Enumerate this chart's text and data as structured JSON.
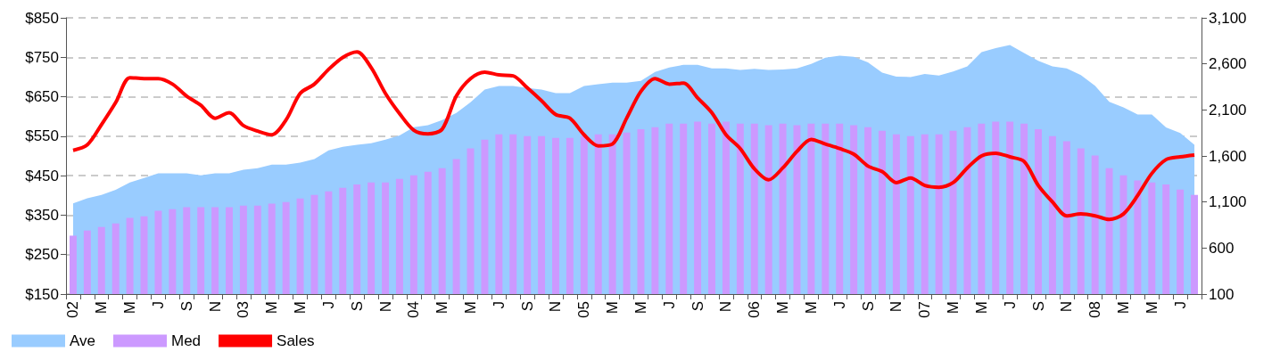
{
  "chart_data": {
    "type": "bar",
    "categories": [
      "02",
      null,
      "M",
      null,
      "M",
      null,
      "J",
      null,
      "S",
      null,
      "N",
      null,
      "03",
      null,
      "M",
      null,
      "M",
      null,
      "J",
      null,
      "S",
      null,
      "N",
      null,
      "04",
      null,
      "M",
      null,
      "M",
      null,
      "J",
      null,
      "S",
      null,
      "N",
      null,
      "05",
      null,
      "M",
      null,
      "M",
      null,
      "J",
      null,
      "S",
      null,
      "N",
      null,
      "06",
      null,
      "M",
      null,
      "M",
      null,
      "J",
      null,
      "S",
      null,
      "N",
      null,
      "07",
      null,
      "M",
      null,
      "M",
      null,
      "J",
      null,
      "S",
      null,
      "N",
      null,
      "08",
      null,
      "M",
      null,
      "M",
      null,
      "J",
      null
    ],
    "series": [
      {
        "name": "Ave",
        "type": "area",
        "color": "#99ccff",
        "values": [
          380,
          393,
          401,
          414,
          433,
          444,
          456,
          456,
          456,
          451,
          456,
          456,
          465,
          469,
          478,
          478,
          483,
          492,
          514,
          523,
          528,
          532,
          541,
          552,
          573,
          578,
          591,
          609,
          636,
          668,
          677,
          677,
          672,
          668,
          659,
          659,
          677,
          682,
          686,
          686,
          690,
          713,
          724,
          731,
          731,
          722,
          722,
          718,
          721,
          718,
          719,
          722,
          733,
          749,
          754,
          751,
          737,
          711,
          701,
          700,
          708,
          704,
          714,
          727,
          763,
          773,
          781,
          761,
          741,
          727,
          722,
          705,
          678,
          637,
          623,
          605,
          605,
          572,
          558,
          528
        ]
      },
      {
        "name": "Med",
        "color": "#cc99ff",
        "values": [
          298,
          311,
          320,
          329,
          343,
          347,
          361,
          365,
          370,
          370,
          370,
          370,
          374,
          374,
          379,
          383,
          392,
          401,
          410,
          419,
          428,
          433,
          433,
          442,
          451,
          460,
          469,
          492,
          519,
          541,
          555,
          555,
          550,
          550,
          546,
          546,
          550,
          555,
          555,
          559,
          568,
          573,
          582,
          582,
          587,
          582,
          587,
          582,
          582,
          578,
          582,
          578,
          582,
          582,
          582,
          578,
          573,
          564,
          555,
          550,
          555,
          555,
          564,
          573,
          582,
          587,
          587,
          582,
          568,
          550,
          537,
          519,
          501,
          469,
          451,
          438,
          433,
          428,
          415,
          401
        ]
      },
      {
        "name": "Sales",
        "type": "line",
        "axis": "y2",
        "color": "#ff0000",
        "values": [
          1660,
          1720,
          1940,
          2180,
          2450,
          2440,
          2440,
          2380,
          2250,
          2150,
          2010,
          2070,
          1930,
          1870,
          1830,
          1990,
          2280,
          2380,
          2540,
          2670,
          2730,
          2560,
          2280,
          2060,
          1880,
          1840,
          1890,
          2250,
          2440,
          2510,
          2480,
          2470,
          2340,
          2200,
          2050,
          2010,
          1830,
          1710,
          1730,
          2010,
          2300,
          2440,
          2380,
          2390,
          2230,
          2070,
          1830,
          1680,
          1460,
          1340,
          1470,
          1650,
          1780,
          1730,
          1680,
          1620,
          1490,
          1430,
          1310,
          1360,
          1280,
          1260,
          1310,
          1470,
          1600,
          1630,
          1590,
          1540,
          1280,
          1100,
          950,
          970,
          950,
          910,
          970,
          1170,
          1410,
          1560,
          1590,
          1610
        ]
      }
    ],
    "ylim": [
      150,
      850
    ],
    "yticks": [
      {
        "value": 150,
        "label": "$150"
      },
      {
        "value": 250,
        "label": "$250"
      },
      {
        "value": 350,
        "label": "$350"
      },
      {
        "value": 450,
        "label": "$450"
      },
      {
        "value": 550,
        "label": "$550"
      },
      {
        "value": 650,
        "label": "$650"
      },
      {
        "value": 750,
        "label": "$750"
      },
      {
        "value": 850,
        "label": "$850"
      }
    ],
    "y2lim": [
      100,
      3100
    ],
    "y2ticks": [
      {
        "value": 100,
        "label": "100"
      },
      {
        "value": 600,
        "label": "600"
      },
      {
        "value": 1100,
        "label": "1,100"
      },
      {
        "value": 1600,
        "label": "1,600"
      },
      {
        "value": 2100,
        "label": "2,100"
      },
      {
        "value": 2600,
        "label": "2,600"
      },
      {
        "value": 3100,
        "label": "3,100"
      }
    ],
    "grid": "y",
    "legend": "bottom left"
  }
}
